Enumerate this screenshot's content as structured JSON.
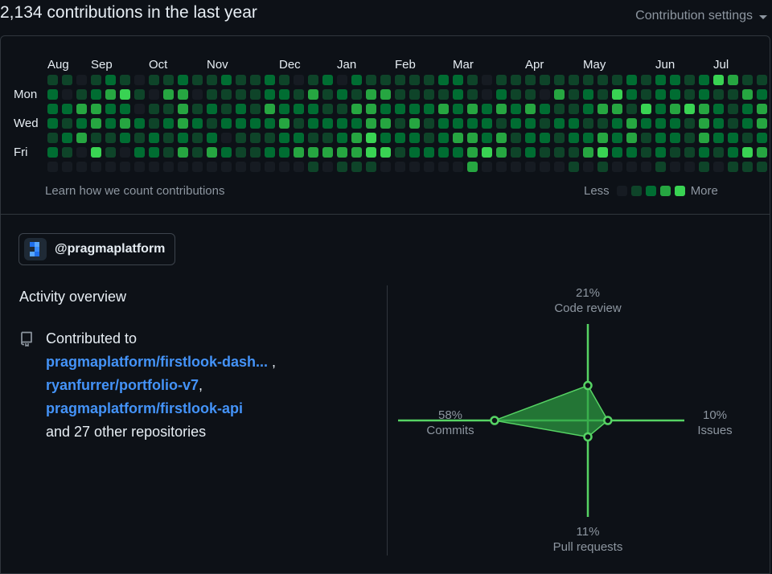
{
  "header": {
    "headline": "2,134 contributions in the last year",
    "settings_label": "Contribution settings",
    "settings_icon": "caret-down-icon"
  },
  "graph": {
    "months": [
      {
        "label": "Aug",
        "week": 0
      },
      {
        "label": "Sep",
        "week": 3
      },
      {
        "label": "Oct",
        "week": 7
      },
      {
        "label": "Nov",
        "week": 11
      },
      {
        "label": "Dec",
        "week": 16
      },
      {
        "label": "Jan",
        "week": 20
      },
      {
        "label": "Feb",
        "week": 24
      },
      {
        "label": "Mar",
        "week": 28
      },
      {
        "label": "Apr",
        "week": 33
      },
      {
        "label": "May",
        "week": 37
      },
      {
        "label": "Jun",
        "week": 42
      },
      {
        "label": "Jul",
        "week": 46
      }
    ],
    "day_labels": [
      {
        "label": "Mon",
        "day": 1
      },
      {
        "label": "Wed",
        "day": 3
      },
      {
        "label": "Fri",
        "day": 5
      }
    ],
    "colors": [
      "#161b22",
      "#0e4429",
      "#006d32",
      "#26a641",
      "#39d353"
    ],
    "weeks": [
      [
        1,
        2,
        2,
        2,
        1,
        2,
        0
      ],
      [
        1,
        0,
        2,
        1,
        2,
        1,
        0
      ],
      [
        0,
        1,
        3,
        2,
        3,
        0,
        0
      ],
      [
        1,
        2,
        3,
        3,
        1,
        4,
        0
      ],
      [
        2,
        3,
        2,
        2,
        1,
        1,
        0
      ],
      [
        1,
        4,
        2,
        3,
        2,
        0,
        0
      ],
      [
        0,
        1,
        0,
        2,
        1,
        2,
        0
      ],
      [
        1,
        0,
        1,
        1,
        2,
        2,
        0
      ],
      [
        1,
        3,
        1,
        2,
        1,
        1,
        0
      ],
      [
        2,
        3,
        3,
        3,
        2,
        3,
        0
      ],
      [
        1,
        0,
        1,
        2,
        1,
        1,
        0
      ],
      [
        1,
        1,
        2,
        1,
        2,
        3,
        0
      ],
      [
        2,
        1,
        1,
        2,
        0,
        2,
        0
      ],
      [
        1,
        1,
        2,
        2,
        1,
        1,
        0
      ],
      [
        1,
        1,
        1,
        2,
        1,
        1,
        0
      ],
      [
        2,
        2,
        3,
        2,
        1,
        2,
        0
      ],
      [
        1,
        2,
        2,
        3,
        2,
        2,
        0
      ],
      [
        0,
        1,
        2,
        1,
        2,
        3,
        0
      ],
      [
        1,
        3,
        2,
        2,
        1,
        3,
        1
      ],
      [
        2,
        1,
        1,
        2,
        1,
        3,
        0
      ],
      [
        0,
        2,
        1,
        2,
        2,
        3,
        1
      ],
      [
        2,
        1,
        3,
        2,
        3,
        3,
        1
      ],
      [
        1,
        3,
        3,
        3,
        4,
        4,
        1
      ],
      [
        1,
        3,
        2,
        3,
        2,
        4,
        0
      ],
      [
        1,
        1,
        2,
        1,
        2,
        1,
        0
      ],
      [
        1,
        1,
        2,
        3,
        2,
        2,
        0
      ],
      [
        1,
        1,
        2,
        1,
        1,
        2,
        0
      ],
      [
        2,
        1,
        3,
        2,
        2,
        2,
        0
      ],
      [
        2,
        2,
        2,
        2,
        3,
        2,
        0
      ],
      [
        1,
        1,
        3,
        2,
        3,
        3,
        3
      ],
      [
        0,
        0,
        2,
        2,
        2,
        4,
        0
      ],
      [
        1,
        2,
        3,
        1,
        3,
        3,
        0
      ],
      [
        1,
        1,
        2,
        2,
        1,
        1,
        0
      ],
      [
        1,
        1,
        3,
        2,
        2,
        2,
        0
      ],
      [
        1,
        0,
        2,
        1,
        2,
        1,
        0
      ],
      [
        1,
        3,
        1,
        2,
        1,
        1,
        0
      ],
      [
        1,
        1,
        1,
        2,
        2,
        1,
        1
      ],
      [
        1,
        2,
        2,
        1,
        2,
        3,
        0
      ],
      [
        1,
        1,
        3,
        1,
        3,
        4,
        1
      ],
      [
        1,
        4,
        3,
        2,
        2,
        2,
        0
      ],
      [
        2,
        2,
        1,
        3,
        3,
        2,
        0
      ],
      [
        1,
        1,
        4,
        2,
        1,
        1,
        0
      ],
      [
        2,
        2,
        2,
        2,
        2,
        2,
        1
      ],
      [
        2,
        2,
        3,
        2,
        2,
        1,
        0
      ],
      [
        1,
        1,
        4,
        1,
        1,
        1,
        0
      ],
      [
        2,
        2,
        3,
        3,
        3,
        2,
        1
      ],
      [
        4,
        1,
        2,
        2,
        2,
        1,
        0
      ],
      [
        3,
        1,
        1,
        1,
        2,
        2,
        1
      ],
      [
        1,
        3,
        2,
        2,
        1,
        4,
        1
      ],
      [
        1,
        2,
        3,
        3,
        2,
        3,
        1
      ],
      [
        1,
        2,
        2,
        3,
        1,
        2,
        1
      ],
      [
        1,
        3,
        4,
        3,
        3,
        3,
        3
      ]
    ],
    "learn_link": "Learn how we count contributions",
    "legend_less": "Less",
    "legend_more": "More"
  },
  "org": {
    "name": "@pragmaplatform",
    "avatar_icon": "pragma-logo-icon"
  },
  "activity": {
    "title": "Activity overview",
    "repo_icon": "repo-icon",
    "contributed_to": "Contributed to",
    "repos": [
      {
        "name": "pragmaplatform/firstlook-dash...",
        "suffix": " ,"
      },
      {
        "name": "ryanfurrer/portfolio-v7",
        "suffix": ","
      },
      {
        "name": "pragmaplatform/firstlook-api",
        "suffix": ""
      }
    ],
    "others": "and 27 other repositories",
    "axis_color": "#56d364",
    "fill_color": "#2ea043",
    "radar": {
      "code_review": {
        "pct": "21%",
        "label": "Code review",
        "value": 21
      },
      "issues": {
        "pct": "10%",
        "label": "Issues",
        "value": 10
      },
      "pull_requests": {
        "pct": "11%",
        "label": "Pull requests",
        "value": 11
      },
      "commits": {
        "pct": "58%",
        "label": "Commits",
        "value": 58
      }
    }
  }
}
